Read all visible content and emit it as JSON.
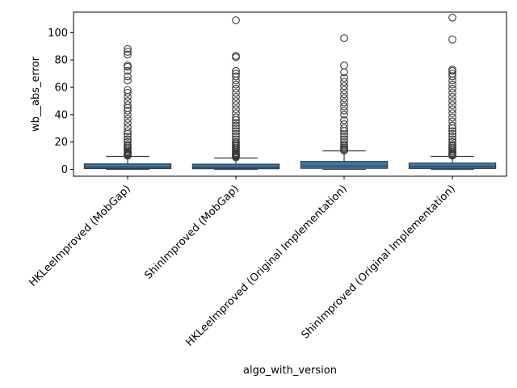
{
  "chart_data": {
    "type": "box",
    "title": "",
    "xlabel": "algo_with_version",
    "ylabel": "wb__abs_error",
    "ylim": [
      -5,
      115
    ],
    "yticks": [
      0,
      20,
      40,
      60,
      80,
      100
    ],
    "grid": false,
    "legend": "none",
    "colors": {
      "box_fill": "#2f7cb8",
      "box_edge": "#3a3a3a",
      "whisker": "#3a3a3a",
      "flier_edge": "#3a3a3a",
      "axes": "#000000"
    },
    "categories": [
      "HKLeeImproved (MobGap)",
      "ShinImproved (MobGap)",
      "HKLeeImproved (Original Implementation)",
      "ShinImproved (Original Implementation)"
    ],
    "boxes": [
      {
        "category": "HKLeeImproved (MobGap)",
        "whisker_low": 0,
        "q1": 0.6,
        "median": 1.6,
        "q3": 4.0,
        "whisker_high": 9.5,
        "outliers": [
          10,
          10.5,
          11,
          11.5,
          12,
          12.5,
          13,
          14,
          15,
          16,
          17,
          18,
          20,
          22,
          24,
          26,
          28,
          31,
          34,
          37,
          40,
          43,
          45,
          47,
          50,
          53,
          56,
          58,
          65,
          68,
          72,
          75,
          76,
          84,
          86,
          88
        ]
      },
      {
        "category": "ShinImproved (MobGap)",
        "whisker_low": 0,
        "q1": 0.5,
        "median": 1.5,
        "q3": 3.8,
        "whisker_high": 8.3,
        "outliers": [
          8.8,
          9.5,
          10,
          10.5,
          11,
          11.5,
          12,
          13,
          14,
          15,
          16,
          17,
          18,
          19,
          20,
          22,
          24,
          26,
          28,
          30,
          32,
          34,
          36,
          38,
          41,
          44,
          47,
          50,
          53,
          56,
          59,
          62,
          65,
          68,
          70,
          72,
          82,
          83,
          109
        ]
      },
      {
        "category": "HKLeeImproved (Original Implementation)",
        "whisker_low": 0,
        "q1": 0.8,
        "median": 2.5,
        "q3": 5.8,
        "whisker_high": 13.5,
        "outliers": [
          13.8,
          14.2,
          15,
          16,
          17,
          18,
          20,
          22,
          24,
          26,
          28,
          30,
          33,
          36,
          40,
          43,
          46,
          49,
          52,
          55,
          58,
          61,
          64,
          67,
          71,
          76,
          96
        ]
      },
      {
        "category": "ShinImproved (Original Implementation)",
        "whisker_low": 0,
        "q1": 0.7,
        "median": 2.0,
        "q3": 4.6,
        "whisker_high": 9.5,
        "outliers": [
          10,
          10.5,
          11,
          11.5,
          12,
          13,
          14,
          15,
          16,
          17,
          18,
          20,
          22,
          24,
          26,
          28,
          30,
          32,
          35,
          38,
          41,
          44,
          47,
          50,
          53,
          56,
          59,
          62,
          65,
          68,
          70,
          72,
          73,
          95,
          111
        ]
      }
    ]
  }
}
